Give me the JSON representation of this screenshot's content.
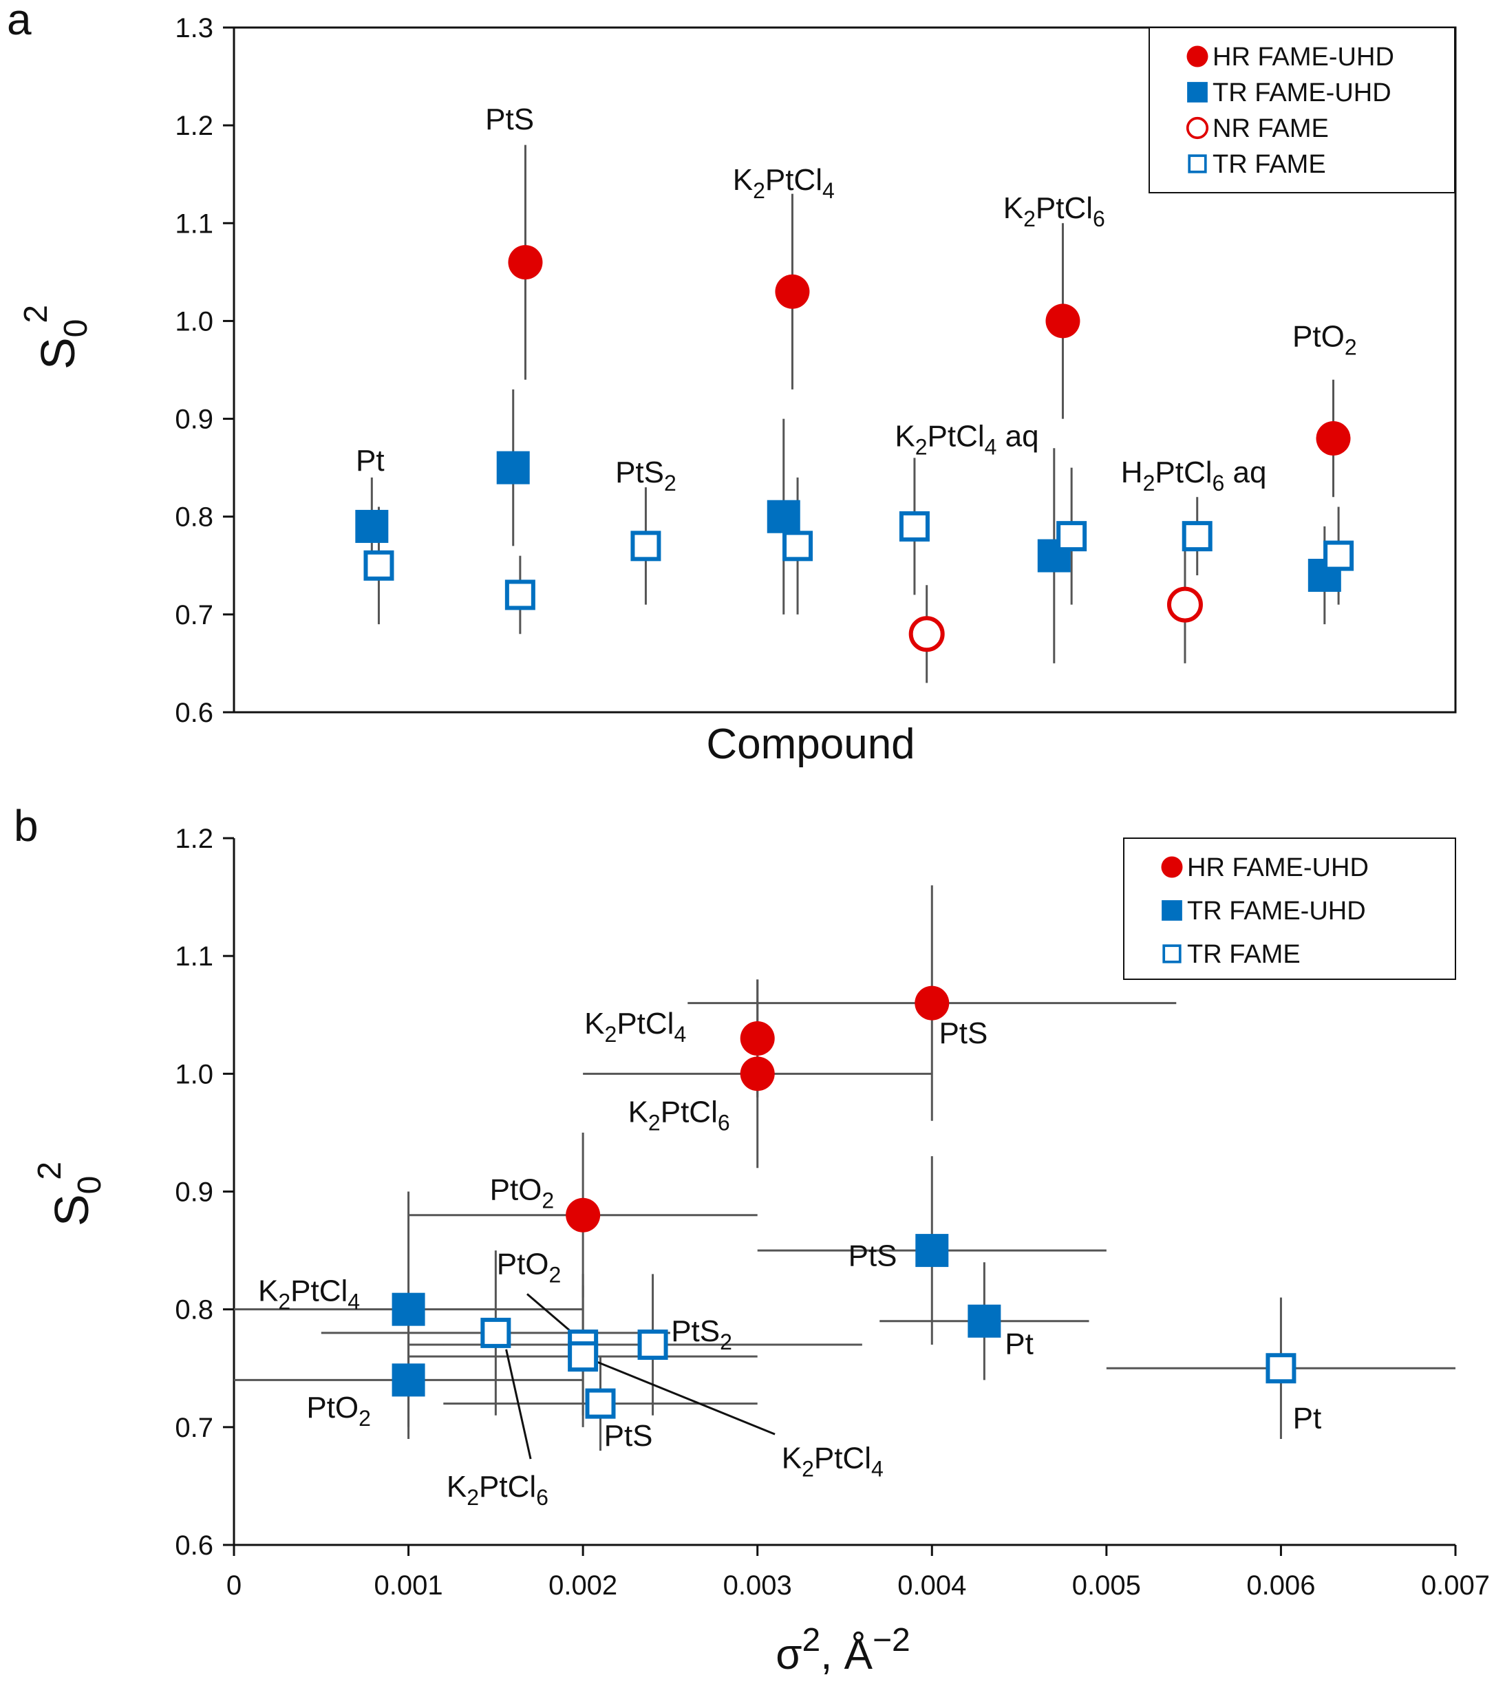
{
  "panels": [
    {
      "letter": "a",
      "y_label": {
        "main": "S",
        "sub": "0",
        "sup": "2"
      },
      "x_label": "Compound",
      "chart_data": {
        "type": "scatter",
        "xlabel": "Compound",
        "ylabel": "S0^2",
        "ylim": [
          0.6,
          1.3
        ],
        "yticks": [
          "0.6",
          "0.7",
          "0.8",
          "0.9",
          "1.0",
          "1.1",
          "1.2",
          "1.3"
        ],
        "legend": {
          "position": "top-right",
          "entries": [
            {
              "label": "HR  FAME-UHD",
              "marker": "filled-circle",
              "color": "#e00000"
            },
            {
              "label": "TR  FAME-UHD",
              "marker": "filled-square",
              "color": "#0070c0"
            },
            {
              "label": "NR  FAME",
              "marker": "open-circle",
              "color": "#e00000"
            },
            {
              "label": "TR  FAME",
              "marker": "open-square",
              "color": "#0070c0"
            }
          ]
        },
        "series": [
          {
            "name": "HR  FAME-UHD",
            "marker": "filled-circle",
            "color": "#e00000",
            "points": [
              {
                "x": 1.67,
                "y": 1.06,
                "err": 0.12
              },
              {
                "x": 3.2,
                "y": 1.03,
                "err": 0.1
              },
              {
                "x": 4.75,
                "y": 1.0,
                "err": 0.1
              },
              {
                "x": 6.3,
                "y": 0.88,
                "err": 0.06
              }
            ]
          },
          {
            "name": "TR  FAME-UHD",
            "marker": "filled-square",
            "color": "#0070c0",
            "points": [
              {
                "x": 0.79,
                "y": 0.79,
                "err": 0.05
              },
              {
                "x": 1.6,
                "y": 0.85,
                "err": 0.08
              },
              {
                "x": 3.15,
                "y": 0.8,
                "err": 0.1
              },
              {
                "x": 4.7,
                "y": 0.76,
                "err": 0.11
              },
              {
                "x": 6.25,
                "y": 0.74,
                "err": 0.05
              }
            ]
          },
          {
            "name": "NR  FAME",
            "marker": "open-circle",
            "color": "#e00000",
            "points": [
              {
                "x": 3.97,
                "y": 0.68,
                "err": 0.05
              },
              {
                "x": 5.45,
                "y": 0.71,
                "err": 0.06
              }
            ]
          },
          {
            "name": "TR  FAME",
            "marker": "open-square",
            "color": "#0070c0",
            "points": [
              {
                "x": 0.83,
                "y": 0.75,
                "err": 0.06
              },
              {
                "x": 1.64,
                "y": 0.72,
                "err": 0.04
              },
              {
                "x": 2.36,
                "y": 0.77,
                "err": 0.06
              },
              {
                "x": 3.23,
                "y": 0.77,
                "err": 0.07
              },
              {
                "x": 3.9,
                "y": 0.79,
                "err": 0.07
              },
              {
                "x": 4.8,
                "y": 0.78,
                "err": 0.07
              },
              {
                "x": 5.52,
                "y": 0.78,
                "err": 0.04
              },
              {
                "x": 6.33,
                "y": 0.76,
                "err": 0.05
              }
            ]
          }
        ],
        "annotations": [
          {
            "parts": [
              {
                "t": "Pt"
              }
            ],
            "x": 0.78,
            "y": 0.847
          },
          {
            "parts": [
              {
                "t": "PtS"
              }
            ],
            "x": 1.58,
            "y": 1.196
          },
          {
            "parts": [
              {
                "t": "PtS"
              },
              {
                "t": "2",
                "sub": true
              }
            ],
            "x": 2.36,
            "y": 0.835
          },
          {
            "parts": [
              {
                "t": "K"
              },
              {
                "t": "2",
                "sub": true
              },
              {
                "t": "PtCl"
              },
              {
                "t": "4",
                "sub": true
              }
            ],
            "x": 3.15,
            "y": 1.134
          },
          {
            "parts": [
              {
                "t": "K"
              },
              {
                "t": "2",
                "sub": true
              },
              {
                "t": "PtCl"
              },
              {
                "t": "4",
                "sub": true
              },
              {
                "t": " aq"
              }
            ],
            "x": 4.2,
            "y": 0.872
          },
          {
            "parts": [
              {
                "t": "K"
              },
              {
                "t": "2",
                "sub": true
              },
              {
                "t": "PtCl"
              },
              {
                "t": "6",
                "sub": true
              }
            ],
            "x": 4.7,
            "y": 1.105
          },
          {
            "parts": [
              {
                "t": "H"
              },
              {
                "t": "2",
                "sub": true
              },
              {
                "t": "PtCl"
              },
              {
                "t": "6",
                "sub": true
              },
              {
                "t": " aq"
              }
            ],
            "x": 5.5,
            "y": 0.835
          },
          {
            "parts": [
              {
                "t": "PtO"
              },
              {
                "t": "2",
                "sub": true
              }
            ],
            "x": 6.25,
            "y": 0.974
          }
        ]
      }
    },
    {
      "letter": "b",
      "y_label": {
        "main": "S",
        "sub": "0",
        "sup": "2"
      },
      "x_label": {
        "main": "σ",
        "sup1": "2",
        "mid": ", Å",
        "sup2": "−2"
      },
      "chart_data": {
        "type": "scatter",
        "xlabel": "σ2, Å−2",
        "ylabel": "S0^2",
        "xlim": [
          0,
          0.007
        ],
        "ylim": [
          0.6,
          1.2
        ],
        "xticks": [
          "0",
          "0.001",
          "0.002",
          "0.003",
          "0.004",
          "0.005",
          "0.006",
          "0.007"
        ],
        "yticks": [
          "0.6",
          "0.7",
          "0.8",
          "0.9",
          "1.0",
          "1.1",
          "1.2"
        ],
        "legend": {
          "position": "top-right",
          "entries": [
            {
              "label": "HR  FAME-UHD",
              "marker": "filled-circle",
              "color": "#e00000"
            },
            {
              "label": "TR  FAME-UHD",
              "marker": "filled-square",
              "color": "#0070c0"
            },
            {
              "label": "TR FAME",
              "marker": "open-square",
              "color": "#0070c0"
            }
          ]
        },
        "series": [
          {
            "name": "HR  FAME-UHD",
            "marker": "filled-circle",
            "color": "#e00000",
            "points": [
              {
                "x": 0.004,
                "y": 1.06,
                "xerr": 0.0014,
                "yerr": 0.1
              },
              {
                "x": 0.003,
                "y": 1.03,
                "xerr": 0.0,
                "yerr": 0.05
              },
              {
                "x": 0.003,
                "y": 1.0,
                "xerr": 0.001,
                "yerr": 0.08
              },
              {
                "x": 0.002,
                "y": 0.88,
                "xerr": 0.001,
                "yerr": 0.07
              }
            ]
          },
          {
            "name": "TR  FAME-UHD",
            "marker": "filled-square",
            "color": "#0070c0",
            "points": [
              {
                "x": 0.001,
                "y": 0.8,
                "xerr": 0.001,
                "yerr": 0.1
              },
              {
                "x": 0.001,
                "y": 0.74,
                "xerr": 0.001,
                "yerr": 0.05
              },
              {
                "x": 0.004,
                "y": 0.85,
                "xerr": 0.001,
                "yerr": 0.08
              },
              {
                "x": 0.0043,
                "y": 0.79,
                "xerr": 0.0006,
                "yerr": 0.05
              }
            ]
          },
          {
            "name": "TR FAME",
            "marker": "open-square",
            "color": "#0070c0",
            "points": [
              {
                "x": 0.0015,
                "y": 0.78,
                "xerr": 0.001,
                "yerr": 0.07
              },
              {
                "x": 0.002,
                "y": 0.77,
                "xerr": 0.001,
                "yerr": 0.06
              },
              {
                "x": 0.002,
                "y": 0.76,
                "xerr": 0.001,
                "yerr": 0.06
              },
              {
                "x": 0.0024,
                "y": 0.77,
                "xerr": 0.0012,
                "yerr": 0.06
              },
              {
                "x": 0.0021,
                "y": 0.72,
                "xerr": 0.0009,
                "yerr": 0.04
              },
              {
                "x": 0.006,
                "y": 0.75,
                "xerr": 0.001,
                "yerr": 0.06
              }
            ]
          }
        ],
        "annotations": [
          {
            "parts": [
              {
                "t": "PtS"
              }
            ],
            "x": 0.00418,
            "y": 1.026
          },
          {
            "parts": [
              {
                "t": "K"
              },
              {
                "t": "2",
                "sub": true
              },
              {
                "t": "PtCl"
              },
              {
                "t": "4",
                "sub": true
              }
            ],
            "x": 0.0023,
            "y": 1.034
          },
          {
            "parts": [
              {
                "t": "K"
              },
              {
                "t": "2",
                "sub": true
              },
              {
                "t": "PtCl"
              },
              {
                "t": "6",
                "sub": true
              }
            ],
            "x": 0.00255,
            "y": 0.959
          },
          {
            "parts": [
              {
                "t": "PtO"
              },
              {
                "t": "2",
                "sub": true
              }
            ],
            "x": 0.00165,
            "y": 0.893
          },
          {
            "parts": [
              {
                "t": "PtS"
              }
            ],
            "x": 0.00366,
            "y": 0.837
          },
          {
            "parts": [
              {
                "t": "Pt"
              }
            ],
            "x": 0.0045,
            "y": 0.762
          },
          {
            "parts": [
              {
                "t": "Pt"
              }
            ],
            "x": 0.00615,
            "y": 0.699
          },
          {
            "parts": [
              {
                "t": "K"
              },
              {
                "t": "2",
                "sub": true
              },
              {
                "t": "PtCl"
              },
              {
                "t": "4",
                "sub": true
              }
            ],
            "x": 0.00043,
            "y": 0.807
          },
          {
            "parts": [
              {
                "t": "PtO"
              },
              {
                "t": "2",
                "sub": true
              }
            ],
            "x": 0.00169,
            "y": 0.83
          },
          {
            "parts": [
              {
                "t": "PtS"
              },
              {
                "t": "2",
                "sub": true
              }
            ],
            "x": 0.00268,
            "y": 0.773
          },
          {
            "parts": [
              {
                "t": "PtO"
              },
              {
                "t": "2",
                "sub": true
              }
            ],
            "x": 0.0006,
            "y": 0.708
          },
          {
            "parts": [
              {
                "t": "PtS"
              }
            ],
            "x": 0.00226,
            "y": 0.684
          },
          {
            "parts": [
              {
                "t": "K"
              },
              {
                "t": "2",
                "sub": true
              },
              {
                "t": "PtCl"
              },
              {
                "t": "6",
                "sub": true
              }
            ],
            "x": 0.00151,
            "y": 0.641
          },
          {
            "parts": [
              {
                "t": "K"
              },
              {
                "t": "2",
                "sub": true
              },
              {
                "t": "PtCl"
              },
              {
                "t": "4",
                "sub": true
              }
            ],
            "x": 0.00343,
            "y": 0.665
          }
        ],
        "leader_lines": [
          {
            "from": [
              0.00168,
              0.813
            ],
            "to": [
              0.00198,
              0.775
            ]
          },
          {
            "from": [
              0.0017,
              0.673
            ],
            "to": [
              0.00156,
              0.766
            ]
          },
          {
            "from": [
              0.0031,
              0.694
            ],
            "to": [
              0.00207,
              0.756
            ]
          }
        ]
      }
    }
  ]
}
